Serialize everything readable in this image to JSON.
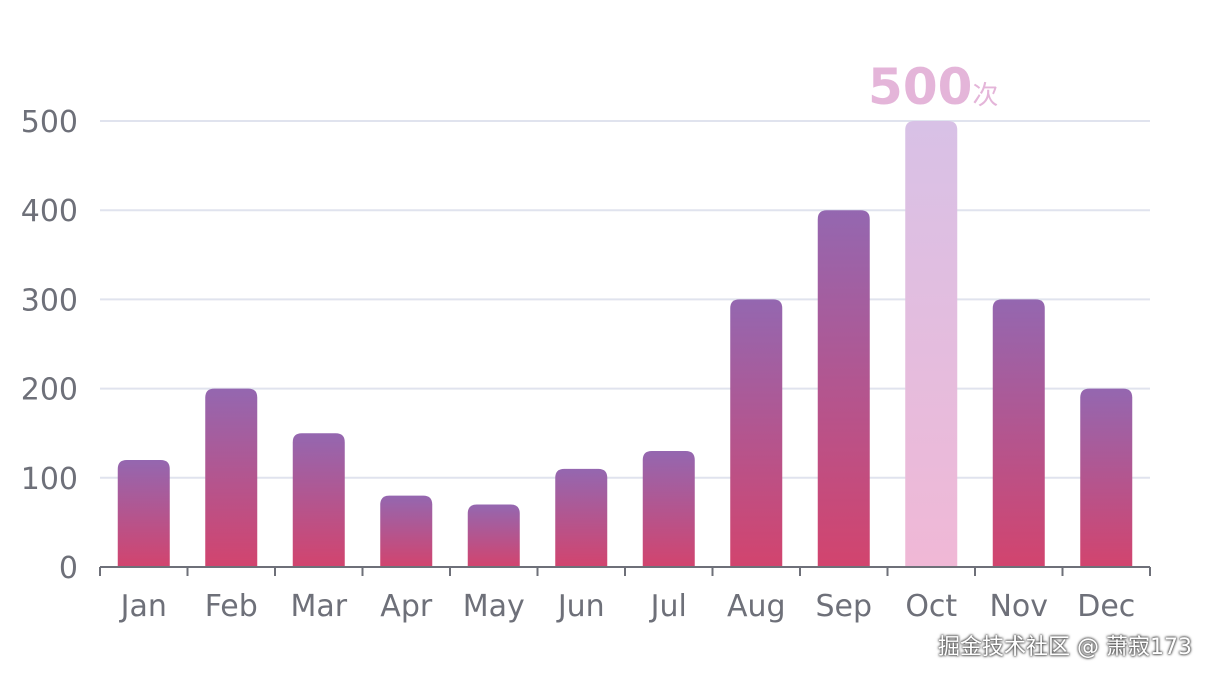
{
  "chart_data": {
    "type": "bar",
    "title": "",
    "xlabel": "",
    "ylabel": "",
    "categories": [
      "Jan",
      "Feb",
      "Mar",
      "Apr",
      "May",
      "Jun",
      "Jul",
      "Aug",
      "Sep",
      "Oct",
      "Nov",
      "Dec"
    ],
    "values": [
      120,
      200,
      150,
      80,
      70,
      110,
      130,
      300,
      400,
      500,
      300,
      200
    ],
    "ylim": [
      0,
      500
    ],
    "yticks": [
      0,
      100,
      200,
      300,
      400,
      500
    ],
    "grid": true,
    "highlight": {
      "category": "Oct",
      "value_label": "500",
      "unit_label": "次"
    },
    "colors": {
      "bar_top": "#9467b0",
      "bar_bottom": "#d2446e",
      "highlight_top": "#d8c1e6",
      "highlight_bottom": "#f0b8d6",
      "highlight_label": "#e4b5d9",
      "grid": "#e0e3ee",
      "axis": "#6e7079"
    }
  },
  "watermark": "掘金技术社区 @ 萧寂173"
}
